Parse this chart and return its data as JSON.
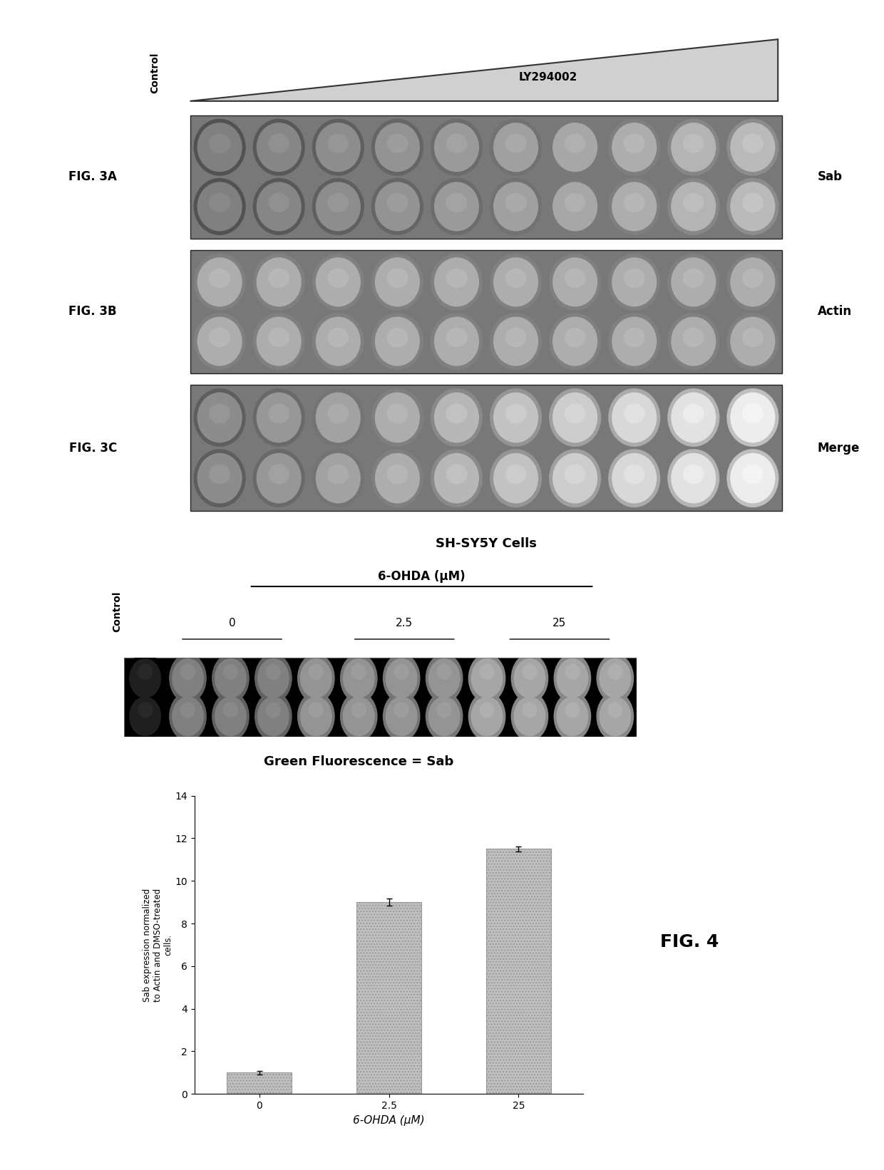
{
  "fig_width": 12.4,
  "fig_height": 16.42,
  "bg_color": "#ffffff",
  "top_panel": {
    "control_label": "Control",
    "ly_label": "LY294002",
    "fig3a_label": "FIG. 3A",
    "fig3b_label": "FIG. 3B",
    "fig3c_label": "FIG. 3C",
    "sab_label": "Sab",
    "actin_label": "Actin",
    "merge_label": "Merge",
    "bottom_label": "SH-SY5Y Cells",
    "n_cols": 10,
    "panel_bg": "#808080",
    "panels": [
      {
        "label": "FIG. 3A",
        "right_label": "Sab",
        "bl": 0.5,
        "br": 0.73
      },
      {
        "label": "FIG. 3B",
        "right_label": "Actin",
        "bl": 0.68,
        "br": 0.68
      },
      {
        "label": "FIG. 3C",
        "right_label": "Merge",
        "bl": 0.55,
        "br": 0.93
      }
    ]
  },
  "bottom_panel": {
    "title_6ohda": "6-OHDA (μM)",
    "control_label": "Control",
    "concentrations": [
      "0",
      "2.5",
      "25"
    ],
    "fluorescence_label": "Green Fluorescence = Sab",
    "bar_values": [
      1.0,
      9.0,
      11.5
    ],
    "bar_color": "#c0c0c0",
    "bar_categories": [
      "0",
      "2.5",
      "25"
    ],
    "ylabel": "Sab expression normalized\nto Actin and DMSO-treated\ncells.",
    "xlabel": "6-OHDA (μM)",
    "ylim": [
      0,
      14
    ],
    "yticks": [
      0,
      2,
      4,
      6,
      8,
      10,
      12,
      14
    ],
    "fig4_label": "FIG. 4",
    "dot_sections": [
      {
        "n": 1,
        "brightness": 0.12
      },
      {
        "n": 3,
        "brightness": 0.5
      },
      {
        "n": 4,
        "brightness": 0.58
      },
      {
        "n": 4,
        "brightness": 0.65
      }
    ]
  }
}
